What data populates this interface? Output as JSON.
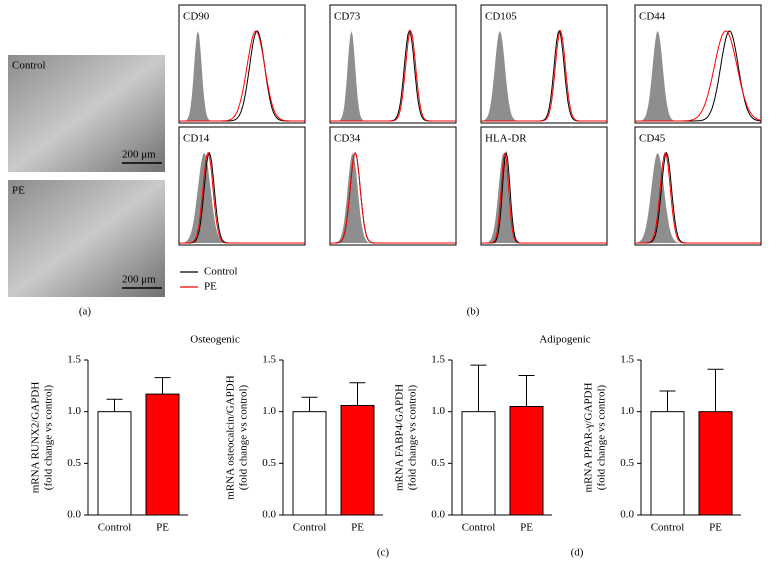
{
  "micrographs": {
    "labels": [
      "Control",
      "PE"
    ],
    "scale_bar": "200 μm",
    "panel": "(a)"
  },
  "flow": {
    "markers": [
      "CD90",
      "CD73",
      "CD105",
      "CD44",
      "CD14",
      "CD34",
      "HLA-DR",
      "CD45"
    ],
    "legend": [
      {
        "name": "Control",
        "color": "#000000"
      },
      {
        "name": "PE",
        "color": "#ff0000"
      }
    ],
    "panel": "(b)"
  },
  "groups": [
    {
      "title": "Osteogenic",
      "panel": "(c)"
    },
    {
      "title": "Adipogenic",
      "panel": "(d)"
    }
  ],
  "chart_data": [
    {
      "type": "bar",
      "ylabel": [
        "mRNA RUNX2/GAPDH",
        "(fold change vs control)"
      ],
      "categories": [
        "Control",
        "PE"
      ],
      "values": [
        1.0,
        1.17
      ],
      "errors": [
        0.12,
        0.16
      ],
      "colors": [
        "#ffffff",
        "#ff0000"
      ],
      "ylim": [
        0,
        1.5
      ],
      "yticks": [
        {
          "value": 0,
          "label": "0.0"
        },
        0.5,
        {
          "value": 1,
          "label": "1.0"
        },
        1.5
      ]
    },
    {
      "type": "bar",
      "ylabel": [
        "mRNA osteocalcin/GAPDH",
        "(fold change vs control)"
      ],
      "categories": [
        "Control",
        "PE"
      ],
      "values": [
        1.0,
        1.06
      ],
      "errors": [
        0.14,
        0.22
      ],
      "colors": [
        "#ffffff",
        "#ff0000"
      ],
      "ylim": [
        0,
        1.5
      ],
      "yticks": [
        {
          "value": 0,
          "label": "0.0"
        },
        0.5,
        {
          "value": 1,
          "label": "1.0"
        },
        1.5
      ]
    },
    {
      "type": "bar",
      "ylabel": [
        "mRNA FABP4/GAPDH",
        "(fold change vs control)"
      ],
      "categories": [
        "Control",
        "PE"
      ],
      "values": [
        1.0,
        1.05
      ],
      "errors": [
        0.45,
        0.3
      ],
      "colors": [
        "#ffffff",
        "#ff0000"
      ],
      "ylim": [
        0,
        1.5
      ],
      "yticks": [
        {
          "value": 0,
          "label": "0.0"
        },
        0.5,
        {
          "value": 1,
          "label": "1.0"
        },
        1.5
      ]
    },
    {
      "type": "bar",
      "ylabel": [
        "mRNA PPAR-γ/GAPDH",
        "(fold change vs control)"
      ],
      "categories": [
        "Control",
        "PE"
      ],
      "values": [
        1.0,
        1.0
      ],
      "errors": [
        0.2,
        0.41
      ],
      "colors": [
        "#ffffff",
        "#ff0000"
      ],
      "ylim": [
        0,
        1.5
      ],
      "yticks": [
        {
          "value": 0,
          "label": "0.0"
        },
        0.5,
        {
          "value": 1,
          "label": "1.0"
        },
        1.5
      ]
    }
  ]
}
